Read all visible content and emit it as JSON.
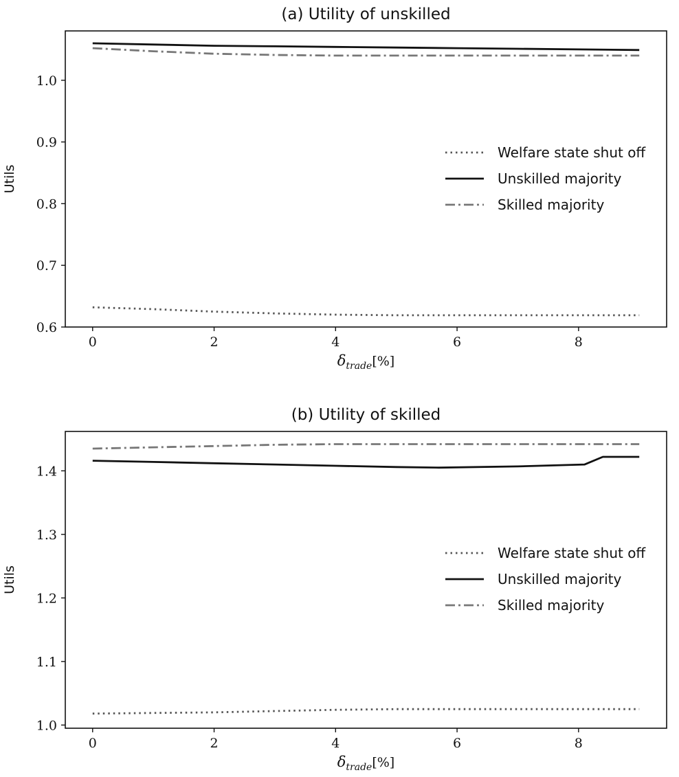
{
  "chart_data": [
    {
      "type": "line",
      "title": "(a) Utility of unskilled",
      "ylabel": "Utils",
      "xlabel": {
        "symbol": "δ",
        "subscript": "trade",
        "unit": "[%]"
      },
      "xlim": [
        -0.45,
        9.45
      ],
      "ylim": [
        0.6,
        1.08
      ],
      "xticks": [
        0,
        2,
        4,
        6,
        8
      ],
      "yticks": [
        0.6,
        0.7,
        0.8,
        0.9,
        1.0
      ],
      "ytick_labels": [
        "0.6",
        "0.7",
        "0.8",
        "0.9",
        "1.0"
      ],
      "grid": false,
      "legend_position": "center-right",
      "series": [
        {
          "name": "Welfare state shut off",
          "style": "dotted",
          "color": "#555555",
          "x": [
            0,
            1,
            2,
            3,
            4,
            5,
            6,
            7,
            8,
            9
          ],
          "y": [
            0.632,
            0.629,
            0.625,
            0.622,
            0.62,
            0.619,
            0.619,
            0.619,
            0.619,
            0.619
          ]
        },
        {
          "name": "Unskilled majority",
          "style": "solid",
          "color": "#111111",
          "x": [
            0,
            1,
            2,
            3,
            4,
            5,
            6,
            7,
            8,
            9
          ],
          "y": [
            1.06,
            1.058,
            1.056,
            1.055,
            1.054,
            1.053,
            1.052,
            1.051,
            1.05,
            1.049
          ]
        },
        {
          "name": "Skilled majority",
          "style": "dashdot",
          "color": "#777777",
          "x": [
            0,
            1,
            2,
            3,
            4,
            5,
            6,
            7,
            8,
            9
          ],
          "y": [
            1.052,
            1.047,
            1.043,
            1.041,
            1.04,
            1.04,
            1.04,
            1.04,
            1.04,
            1.04
          ]
        }
      ]
    },
    {
      "type": "line",
      "title": "(b) Utility of skilled",
      "ylabel": "Utils",
      "xlabel": {
        "symbol": "δ",
        "subscript": "trade",
        "unit": "[%]"
      },
      "xlim": [
        -0.45,
        9.45
      ],
      "ylim": [
        0.995,
        1.462
      ],
      "xticks": [
        0,
        2,
        4,
        6,
        8
      ],
      "yticks": [
        1.0,
        1.1,
        1.2,
        1.3,
        1.4
      ],
      "ytick_labels": [
        "1.0",
        "1.1",
        "1.2",
        "1.3",
        "1.4"
      ],
      "grid": false,
      "legend_position": "center-right",
      "series": [
        {
          "name": "Welfare state shut off",
          "style": "dotted",
          "color": "#555555",
          "x": [
            0,
            1,
            2,
            3,
            4,
            5,
            6,
            7,
            8,
            9
          ],
          "y": [
            1.018,
            1.019,
            1.02,
            1.022,
            1.024,
            1.025,
            1.025,
            1.025,
            1.025,
            1.025
          ]
        },
        {
          "name": "Unskilled majority",
          "style": "solid",
          "color": "#111111",
          "x": [
            0,
            1,
            2,
            3,
            4,
            5,
            5.7,
            7,
            8.1,
            8.4,
            9
          ],
          "y": [
            1.416,
            1.414,
            1.412,
            1.41,
            1.408,
            1.406,
            1.405,
            1.407,
            1.41,
            1.422,
            1.422
          ]
        },
        {
          "name": "Skilled majority",
          "style": "dashdot",
          "color": "#777777",
          "x": [
            0,
            1,
            2,
            3,
            4,
            5,
            6,
            7,
            8,
            9
          ],
          "y": [
            1.435,
            1.437,
            1.439,
            1.441,
            1.442,
            1.442,
            1.442,
            1.442,
            1.442,
            1.442
          ]
        }
      ]
    }
  ]
}
